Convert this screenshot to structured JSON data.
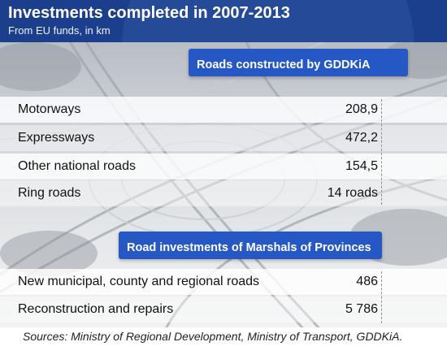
{
  "title": "Investments completed in 2007-2013",
  "subtitle": "From EU funds, in km",
  "section1": {
    "heading": "Roads constructed by GDDKiA",
    "rows": [
      {
        "label": "Motorways",
        "value": "208,9"
      },
      {
        "label": "Expressways",
        "value": "472,2"
      },
      {
        "label": "Other national roads",
        "value": "154,5"
      },
      {
        "label": "Ring roads",
        "value": "14 roads"
      }
    ]
  },
  "section2": {
    "heading": "Road investments of Marshals of Provinces",
    "rows": [
      {
        "label": "New municipal, county and regional roads",
        "value": "486"
      },
      {
        "label": "Reconstruction and repairs",
        "value": "5 786"
      }
    ]
  },
  "source": "Sources: Ministry of Regional Development, Ministry of Transport, GDDKiA.",
  "colors": {
    "header": "#1b3f8c",
    "tab": "#2558c4"
  }
}
